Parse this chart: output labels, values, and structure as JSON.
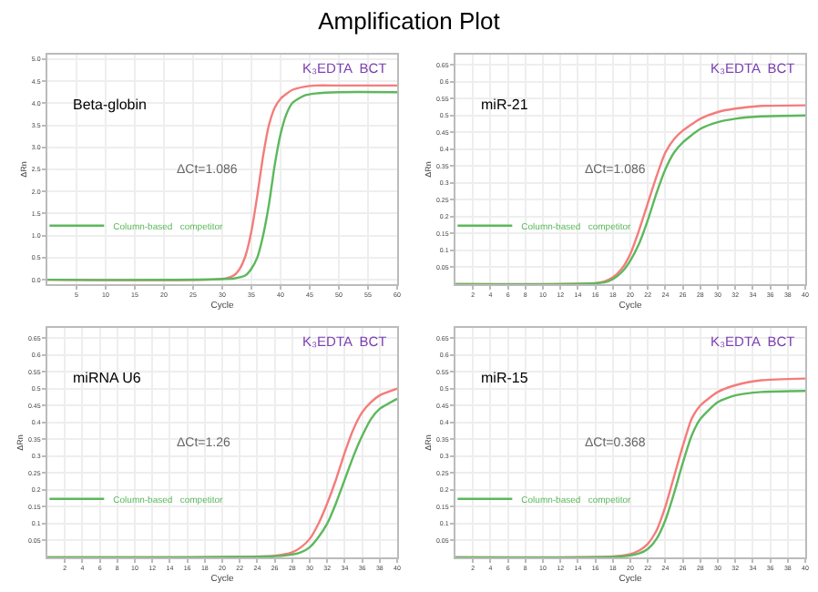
{
  "chart_data": [
    {
      "type": "line",
      "title": "Amplification Plot",
      "xlabel": "Cycle",
      "ylabel": "ΔRn",
      "annotations": [
        "Beta-globin",
        "K₃EDTA  BCT",
        "ΔCt=1.086"
      ],
      "grid": true,
      "legend": "bottom left",
      "marker": "none",
      "line_style": "solid",
      "xlim": [
        0,
        60
      ],
      "xticks": [
        5,
        10,
        15,
        20,
        25,
        30,
        35,
        40,
        45,
        50,
        55,
        60
      ],
      "ylim": [
        -0.1,
        5.1
      ],
      "yticks": [
        {
          "value": 0,
          "label": "0.0"
        },
        0.5,
        {
          "value": 1,
          "label": "1.0"
        },
        1.5,
        {
          "value": 2,
          "label": "2.0"
        },
        2.5,
        {
          "value": 3,
          "label": "3.0"
        },
        3.5,
        {
          "value": 4,
          "label": "4.0"
        },
        4.5,
        {
          "value": 5,
          "label": "5.0"
        }
      ],
      "series": [
        {
          "color": "#f47c7c",
          "x": [
            0,
            30,
            32,
            33,
            34,
            35,
            36,
            37,
            38,
            39,
            40,
            42,
            44,
            46,
            50,
            55,
            60
          ],
          "values": [
            0,
            0.02,
            0.1,
            0.25,
            0.55,
            1.1,
            1.9,
            2.8,
            3.5,
            3.9,
            4.1,
            4.3,
            4.37,
            4.4,
            4.4,
            4.4,
            4.4
          ]
        },
        {
          "name": "Column-based   competitor",
          "color": "#5cb85c",
          "x": [
            0,
            32,
            34,
            35,
            36,
            37,
            38,
            39,
            40,
            41,
            42,
            44,
            46,
            50,
            60
          ],
          "values": [
            0,
            0.03,
            0.1,
            0.25,
            0.5,
            1.0,
            1.7,
            2.6,
            3.3,
            3.75,
            4.0,
            4.17,
            4.22,
            4.25,
            4.25
          ]
        }
      ]
    },
    {
      "type": "line",
      "xlabel": "Cycle",
      "ylabel": "ΔRn",
      "annotations": [
        "miR-21",
        "K₃EDTA  BCT",
        "ΔCt=1.086"
      ],
      "grid": true,
      "legend": "bottom left",
      "marker": "none",
      "line_style": "solid",
      "xlim": [
        0,
        40
      ],
      "xticks": [
        2,
        4,
        6,
        8,
        10,
        12,
        14,
        16,
        18,
        20,
        22,
        24,
        26,
        28,
        30,
        32,
        34,
        36,
        38,
        40
      ],
      "ylim": [
        0,
        0.68
      ],
      "yticks": [
        0.05,
        0.1,
        0.15,
        0.2,
        0.25,
        0.3,
        0.35,
        0.4,
        0.45,
        0.5,
        0.55,
        0.6,
        0.65
      ],
      "series": [
        {
          "color": "#f47c7c",
          "x": [
            0,
            16,
            17,
            18,
            19,
            20,
            21,
            22,
            23,
            24,
            25,
            26,
            28,
            30,
            32,
            35,
            40
          ],
          "values": [
            0,
            0.003,
            0.008,
            0.02,
            0.045,
            0.09,
            0.16,
            0.24,
            0.32,
            0.39,
            0.43,
            0.455,
            0.49,
            0.51,
            0.52,
            0.528,
            0.53
          ]
        },
        {
          "name": "Column-based   competitor",
          "color": "#5cb85c",
          "x": [
            0,
            17,
            18,
            19,
            20,
            21,
            22,
            23,
            24,
            25,
            26,
            28,
            30,
            32,
            35,
            40
          ],
          "values": [
            0,
            0.005,
            0.015,
            0.035,
            0.07,
            0.12,
            0.19,
            0.27,
            0.34,
            0.39,
            0.42,
            0.46,
            0.48,
            0.49,
            0.497,
            0.5
          ]
        }
      ]
    },
    {
      "type": "line",
      "xlabel": "Cycle",
      "ylabel": "ΔRn",
      "annotations": [
        "miRNA U6",
        "K₃EDTA  BCT",
        "ΔCt=1.26"
      ],
      "grid": true,
      "legend": "bottom left",
      "marker": "none",
      "line_style": "solid",
      "xlim": [
        0,
        40
      ],
      "xticks": [
        2,
        4,
        6,
        8,
        10,
        12,
        14,
        16,
        18,
        20,
        22,
        24,
        26,
        28,
        30,
        32,
        34,
        36,
        38,
        40
      ],
      "ylim": [
        0,
        0.68
      ],
      "yticks": [
        0.05,
        0.1,
        0.15,
        0.2,
        0.25,
        0.3,
        0.35,
        0.4,
        0.45,
        0.5,
        0.55,
        0.6,
        0.65
      ],
      "series": [
        {
          "color": "#f47c7c",
          "x": [
            0,
            26,
            28,
            29,
            30,
            31,
            32,
            33,
            34,
            35,
            36,
            37,
            38,
            40
          ],
          "values": [
            0,
            0.005,
            0.015,
            0.03,
            0.055,
            0.1,
            0.16,
            0.23,
            0.31,
            0.38,
            0.43,
            0.46,
            0.48,
            0.5
          ]
        },
        {
          "name": "Column-based   competitor",
          "color": "#5cb85c",
          "x": [
            0,
            27,
            29,
            30,
            31,
            32,
            33,
            34,
            35,
            36,
            37,
            38,
            40
          ],
          "values": [
            0,
            0.005,
            0.015,
            0.03,
            0.06,
            0.1,
            0.16,
            0.23,
            0.3,
            0.36,
            0.41,
            0.44,
            0.47
          ]
        }
      ]
    },
    {
      "type": "line",
      "xlabel": "Cycle",
      "ylabel": "ΔRn",
      "annotations": [
        "miR-15",
        "K₃EDTA  BCT",
        "ΔCt=0.368"
      ],
      "grid": true,
      "legend": "bottom left",
      "marker": "none",
      "line_style": "solid",
      "xlim": [
        0,
        40
      ],
      "xticks": [
        2,
        4,
        6,
        8,
        10,
        12,
        14,
        16,
        18,
        20,
        22,
        24,
        26,
        28,
        30,
        32,
        34,
        36,
        38,
        40
      ],
      "ylim": [
        0,
        0.68
      ],
      "yticks": [
        0.05,
        0.1,
        0.15,
        0.2,
        0.25,
        0.3,
        0.35,
        0.4,
        0.45,
        0.5,
        0.55,
        0.6,
        0.65
      ],
      "series": [
        {
          "color": "#f47c7c",
          "x": [
            0,
            18,
            20,
            21,
            22,
            23,
            24,
            25,
            26,
            27,
            28,
            30,
            32,
            35,
            40
          ],
          "values": [
            0,
            0.003,
            0.01,
            0.02,
            0.04,
            0.08,
            0.15,
            0.24,
            0.33,
            0.41,
            0.45,
            0.49,
            0.51,
            0.525,
            0.53
          ]
        },
        {
          "name": "Column-based   competitor",
          "color": "#5cb85c",
          "x": [
            0,
            19,
            21,
            22,
            23,
            24,
            25,
            26,
            27,
            28,
            30,
            32,
            35,
            40
          ],
          "values": [
            0,
            0.003,
            0.012,
            0.025,
            0.055,
            0.11,
            0.19,
            0.28,
            0.36,
            0.41,
            0.46,
            0.48,
            0.49,
            0.493
          ]
        }
      ]
    }
  ]
}
